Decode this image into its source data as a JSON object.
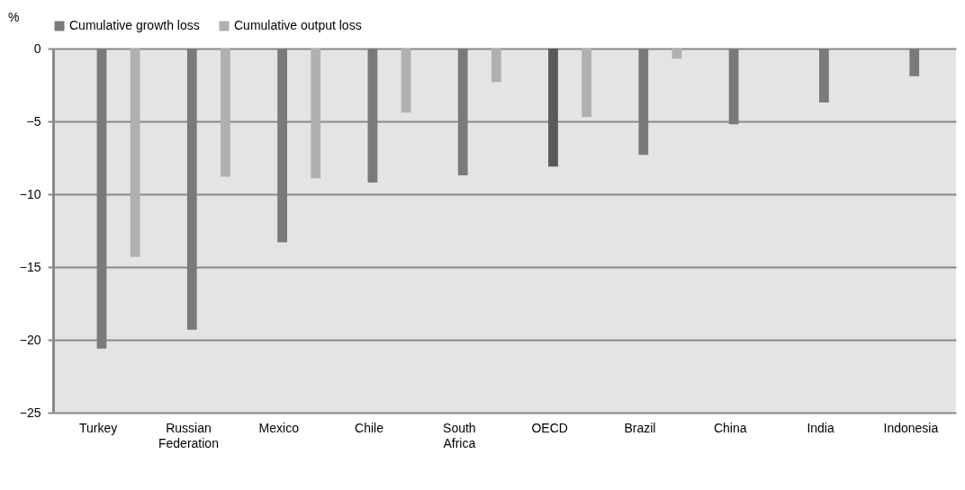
{
  "chart_data": {
    "type": "bar",
    "ylabel": "%",
    "categories": [
      "Turkey",
      "Russian Federation",
      "Mexico",
      "Chile",
      "South Africa",
      "OECD",
      "Brazil",
      "China",
      "India",
      "Indonesia"
    ],
    "series": [
      {
        "name": "Cumulative growth loss",
        "color": "#7a7a7a",
        "colors": [
          "#7a7a7a",
          "#7a7a7a",
          "#7a7a7a",
          "#7a7a7a",
          "#7a7a7a",
          "#595959",
          "#7a7a7a",
          "#7a7a7a",
          "#7a7a7a",
          "#7a7a7a"
        ],
        "values": [
          -20.6,
          -19.3,
          -13.3,
          -9.2,
          -8.7,
          -8.1,
          -7.3,
          -5.2,
          -3.7,
          -1.9
        ]
      },
      {
        "name": "Cumulative output loss",
        "color": "#b0b0b0",
        "values": [
          -14.3,
          -8.8,
          -8.9,
          -4.4,
          -2.3,
          -4.7,
          -0.7,
          null,
          null,
          null
        ]
      }
    ],
    "ylim": [
      -25,
      0
    ],
    "yticks": [
      -25,
      -20,
      -15,
      -10,
      -5,
      0
    ],
    "grid": "y",
    "legend": "top"
  }
}
